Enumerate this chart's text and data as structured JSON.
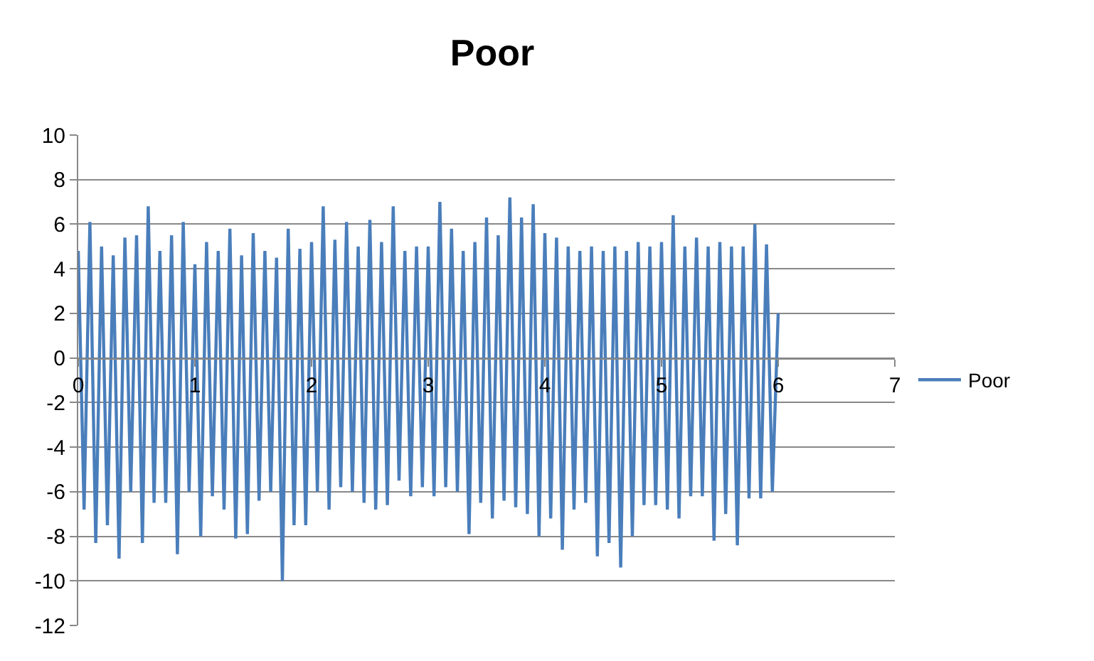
{
  "chart_data": {
    "type": "line",
    "title": "Poor",
    "x": [
      0,
      0.05,
      0.1,
      0.15,
      0.2,
      0.25,
      0.3,
      0.35,
      0.4,
      0.45,
      0.5,
      0.55,
      0.6,
      0.65,
      0.7,
      0.75,
      0.8,
      0.85,
      0.9,
      0.95,
      1.0,
      1.05,
      1.1,
      1.15,
      1.2,
      1.25,
      1.3,
      1.35,
      1.4,
      1.45,
      1.5,
      1.55,
      1.6,
      1.65,
      1.7,
      1.75,
      1.8,
      1.85,
      1.9,
      1.95,
      2.0,
      2.05,
      2.1,
      2.15,
      2.2,
      2.25,
      2.3,
      2.35,
      2.4,
      2.45,
      2.5,
      2.55,
      2.6,
      2.65,
      2.7,
      2.75,
      2.8,
      2.85,
      2.9,
      2.95,
      3.0,
      3.05,
      3.1,
      3.15,
      3.2,
      3.25,
      3.3,
      3.35,
      3.4,
      3.45,
      3.5,
      3.55,
      3.6,
      3.65,
      3.7,
      3.75,
      3.8,
      3.85,
      3.9,
      3.95,
      4.0,
      4.05,
      4.1,
      4.15,
      4.2,
      4.25,
      4.3,
      4.35,
      4.4,
      4.45,
      4.5,
      4.55,
      4.6,
      4.65,
      4.7,
      4.75,
      4.8,
      4.85,
      4.9,
      4.95,
      5.0,
      5.05,
      5.1,
      5.15,
      5.2,
      5.25,
      5.3,
      5.35,
      5.4,
      5.45,
      5.5,
      5.55,
      5.6,
      5.65,
      5.7,
      5.75,
      5.8,
      5.85,
      5.9,
      5.95,
      6.0
    ],
    "series": [
      {
        "name": "Poor",
        "color": "#4a7ebb",
        "values": [
          4.8,
          -6.8,
          6.1,
          -8.3,
          5.0,
          -7.5,
          4.6,
          -9.0,
          5.4,
          -6.0,
          5.5,
          -8.3,
          6.8,
          -6.5,
          4.8,
          -6.5,
          5.5,
          -8.8,
          6.1,
          -6.0,
          4.2,
          -8.0,
          5.2,
          -6.2,
          4.8,
          -6.8,
          5.8,
          -8.1,
          4.6,
          -7.9,
          5.6,
          -6.4,
          4.8,
          -6.0,
          4.5,
          -10.0,
          5.8,
          -7.5,
          4.9,
          -7.5,
          5.2,
          -6.0,
          6.8,
          -6.8,
          5.3,
          -5.8,
          6.1,
          -6.0,
          5.0,
          -6.5,
          6.2,
          -6.8,
          5.2,
          -6.6,
          6.8,
          -5.5,
          4.8,
          -6.2,
          5.0,
          -5.8,
          5.0,
          -6.2,
          7.0,
          -5.8,
          5.8,
          -6.0,
          4.8,
          -7.9,
          5.2,
          -6.5,
          6.3,
          -7.2,
          5.5,
          -6.4,
          7.2,
          -6.7,
          6.3,
          -7.0,
          6.9,
          -8.0,
          5.6,
          -7.2,
          5.4,
          -8.6,
          5.0,
          -6.8,
          4.8,
          -6.5,
          5.0,
          -8.9,
          4.8,
          -8.3,
          5.0,
          -9.4,
          4.8,
          -8.0,
          5.2,
          -6.6,
          5.0,
          -6.6,
          5.2,
          -6.8,
          6.4,
          -7.2,
          5.0,
          -6.2,
          5.4,
          -6.2,
          5.0,
          -8.2,
          5.2,
          -7.0,
          5.0,
          -8.4,
          5.0,
          -6.3,
          6.0,
          -6.3,
          5.1,
          -6.0,
          2.0
        ]
      }
    ],
    "xlim": [
      0,
      7
    ],
    "xticks": [
      0,
      1,
      2,
      3,
      4,
      5,
      6,
      7
    ],
    "ylim": [
      -12,
      10
    ],
    "yticks": [
      -12,
      -10,
      -8,
      -6,
      -4,
      -2,
      0,
      2,
      4,
      6,
      8,
      10
    ],
    "grid": "y",
    "legend": "right",
    "marker": "none",
    "line_style": "solid"
  }
}
